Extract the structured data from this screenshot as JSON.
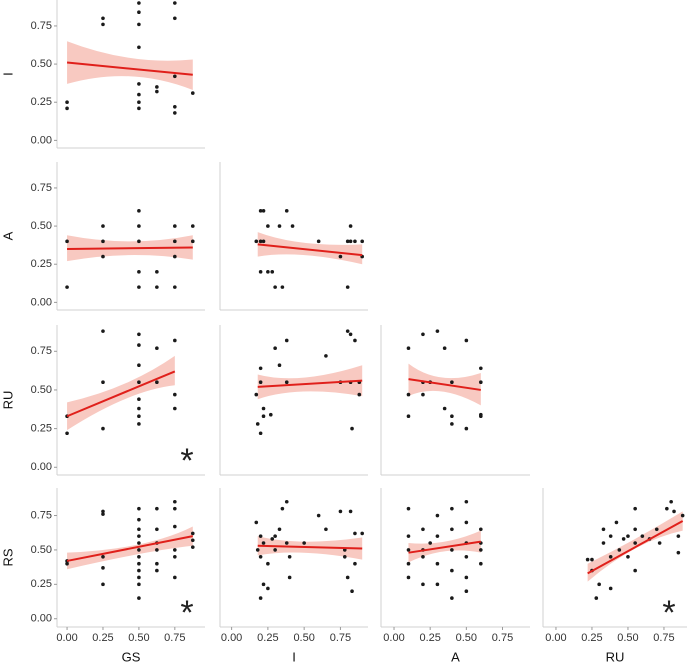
{
  "chart_data": [
    {
      "type": "scatter",
      "ylabel": "I",
      "point_color": "#1a1a1a",
      "line_color": "#e0201b",
      "band_color": "#f6bcb2",
      "xlim": [
        -0.07,
        0.96
      ],
      "ylim": [
        -0.05,
        0.92
      ],
      "yticks": [
        {
          "value": 0,
          "label": "0.00"
        },
        {
          "value": 0.25,
          "label": "0.25"
        },
        {
          "value": 0.5,
          "label": "0.50"
        },
        {
          "value": 0.75,
          "label": "0.75"
        }
      ],
      "x": [
        0,
        0,
        0.25,
        0.25,
        0.5,
        0.5,
        0.5,
        0.5,
        0.5,
        0.5,
        0.5,
        0.5,
        0.625,
        0.625,
        0.75,
        0.75,
        0.75,
        0.75,
        0.75,
        0.875
      ],
      "y": [
        0.25,
        0.21,
        0.8,
        0.76,
        0.9,
        0.84,
        0.76,
        0.61,
        0.37,
        0.3,
        0.25,
        0.21,
        0.35,
        0.32,
        0.9,
        0.8,
        0.42,
        0.22,
        0.18,
        0.31
      ],
      "fit": {
        "x": [
          0,
          0.875
        ],
        "y": [
          0.51,
          0.43
        ]
      },
      "band": {
        "x": [
          0,
          0.44,
          0.875
        ],
        "lower": [
          0.37,
          0.42,
          0.33
        ],
        "upper": [
          0.65,
          0.54,
          0.53
        ]
      }
    },
    {
      "type": "scatter",
      "ylabel": "A",
      "point_color": "#1a1a1a",
      "line_color": "#e0201b",
      "band_color": "#f6bcb2",
      "xlim": [
        -0.07,
        0.96
      ],
      "ylim": [
        -0.05,
        0.92
      ],
      "yticks": [
        {
          "value": 0,
          "label": "0.00"
        },
        {
          "value": 0.25,
          "label": "0.25"
        },
        {
          "value": 0.5,
          "label": "0.50"
        },
        {
          "value": 0.75,
          "label": "0.75"
        }
      ],
      "x": [
        0,
        0,
        0.25,
        0.25,
        0.25,
        0.5,
        0.5,
        0.5,
        0.5,
        0.5,
        0.625,
        0.625,
        0.75,
        0.75,
        0.75,
        0.75,
        0.875,
        0.875
      ],
      "y": [
        0.4,
        0.1,
        0.5,
        0.4,
        0.3,
        0.6,
        0.5,
        0.4,
        0.2,
        0.1,
        0.2,
        0.1,
        0.5,
        0.4,
        0.3,
        0.1,
        0.5,
        0.4
      ],
      "fit": {
        "x": [
          0,
          0.875
        ],
        "y": [
          0.35,
          0.36
        ]
      },
      "band": {
        "x": [
          0,
          0.44,
          0.875
        ],
        "lower": [
          0.27,
          0.31,
          0.28
        ],
        "upper": [
          0.44,
          0.4,
          0.44
        ]
      }
    },
    {
      "type": "scatter",
      "point_color": "#1a1a1a",
      "line_color": "#e0201b",
      "band_color": "#f6bcb2",
      "xlim": [
        -0.08,
        0.94
      ],
      "ylim": [
        -0.05,
        0.92
      ],
      "x": [
        0.17,
        0.2,
        0.2,
        0.2,
        0.22,
        0.22,
        0.25,
        0.25,
        0.28,
        0.3,
        0.33,
        0.35,
        0.38,
        0.42,
        0.6,
        0.75,
        0.8,
        0.8,
        0.82,
        0.82,
        0.85,
        0.9,
        0.9
      ],
      "y": [
        0.4,
        0.6,
        0.4,
        0.2,
        0.6,
        0.4,
        0.5,
        0.2,
        0.2,
        0.1,
        0.5,
        0.1,
        0.6,
        0.5,
        0.4,
        0.3,
        0.4,
        0.1,
        0.5,
        0.4,
        0.4,
        0.4,
        0.3
      ],
      "fit": {
        "x": [
          0.18,
          0.9
        ],
        "y": [
          0.38,
          0.31
        ]
      },
      "band": {
        "x": [
          0.18,
          0.5,
          0.9
        ],
        "lower": [
          0.3,
          0.31,
          0.25
        ],
        "upper": [
          0.46,
          0.39,
          0.38
        ]
      }
    },
    {
      "type": "scatter",
      "ylabel": "RU",
      "annotation": "*",
      "point_color": "#1a1a1a",
      "line_color": "#e0201b",
      "band_color": "#f6bcb2",
      "xlim": [
        -0.07,
        0.96
      ],
      "ylim": [
        -0.05,
        0.92
      ],
      "yticks": [
        {
          "value": 0,
          "label": "0.00"
        },
        {
          "value": 0.25,
          "label": "0.25"
        },
        {
          "value": 0.5,
          "label": "0.50"
        },
        {
          "value": 0.75,
          "label": "0.75"
        }
      ],
      "x": [
        0,
        0,
        0.25,
        0.25,
        0.25,
        0.5,
        0.5,
        0.5,
        0.5,
        0.5,
        0.5,
        0.5,
        0.5,
        0.625,
        0.625,
        0.75,
        0.75,
        0.75
      ],
      "y": [
        0.33,
        0.22,
        0.88,
        0.55,
        0.25,
        0.86,
        0.79,
        0.66,
        0.55,
        0.44,
        0.38,
        0.33,
        0.28,
        0.77,
        0.55,
        0.82,
        0.47,
        0.38
      ],
      "fit": {
        "x": [
          0,
          0.75
        ],
        "y": [
          0.33,
          0.62
        ]
      },
      "band": {
        "x": [
          0,
          0.4,
          0.75
        ],
        "lower": [
          0.24,
          0.44,
          0.53
        ],
        "upper": [
          0.42,
          0.54,
          0.72
        ]
      }
    },
    {
      "type": "scatter",
      "point_color": "#1a1a1a",
      "line_color": "#e0201b",
      "band_color": "#f6bcb2",
      "xlim": [
        -0.08,
        0.94
      ],
      "ylim": [
        -0.05,
        0.92
      ],
      "x": [
        0.17,
        0.18,
        0.2,
        0.2,
        0.2,
        0.22,
        0.22,
        0.27,
        0.3,
        0.33,
        0.38,
        0.38,
        0.65,
        0.75,
        0.8,
        0.82,
        0.82,
        0.83,
        0.85,
        0.88,
        0.88
      ],
      "y": [
        0.47,
        0.28,
        0.64,
        0.55,
        0.22,
        0.38,
        0.33,
        0.34,
        0.77,
        0.66,
        0.82,
        0.55,
        0.72,
        0.55,
        0.88,
        0.86,
        0.55,
        0.25,
        0.82,
        0.55,
        0.47
      ],
      "fit": {
        "x": [
          0.18,
          0.9
        ],
        "y": [
          0.52,
          0.56
        ]
      },
      "band": {
        "x": [
          0.18,
          0.5,
          0.9
        ],
        "lower": [
          0.44,
          0.49,
          0.46
        ],
        "upper": [
          0.6,
          0.58,
          0.66
        ]
      }
    },
    {
      "type": "scatter",
      "point_color": "#1a1a1a",
      "line_color": "#e0201b",
      "band_color": "#f6bcb2",
      "xlim": [
        -0.09,
        0.94
      ],
      "ylim": [
        -0.05,
        0.92
      ],
      "x": [
        0.1,
        0.1,
        0.1,
        0.2,
        0.2,
        0.2,
        0.25,
        0.3,
        0.35,
        0.35,
        0.4,
        0.4,
        0.4,
        0.5,
        0.5,
        0.6,
        0.6,
        0.6,
        0.6
      ],
      "y": [
        0.77,
        0.47,
        0.33,
        0.86,
        0.55,
        0.47,
        0.55,
        0.88,
        0.77,
        0.38,
        0.55,
        0.33,
        0.28,
        0.82,
        0.25,
        0.64,
        0.55,
        0.34,
        0.33
      ],
      "fit": {
        "x": [
          0.1,
          0.6
        ],
        "y": [
          0.57,
          0.5
        ]
      },
      "band": {
        "x": [
          0.1,
          0.33,
          0.6
        ],
        "lower": [
          0.46,
          0.49,
          0.4
        ],
        "upper": [
          0.67,
          0.58,
          0.61
        ]
      }
    },
    {
      "type": "scatter",
      "ylabel": "RS",
      "xlabel": "GS",
      "annotation": "*",
      "point_color": "#1a1a1a",
      "line_color": "#e0201b",
      "band_color": "#f6bcb2",
      "xlim": [
        -0.07,
        0.96
      ],
      "ylim": [
        -0.06,
        0.95
      ],
      "yticks": [
        {
          "value": 0,
          "label": "0.00"
        },
        {
          "value": 0.25,
          "label": "0.25"
        },
        {
          "value": 0.5,
          "label": "0.50"
        },
        {
          "value": 0.75,
          "label": "0.75"
        }
      ],
      "xticks": [
        {
          "value": 0,
          "label": "0.00"
        },
        {
          "value": 0.25,
          "label": "0.25"
        },
        {
          "value": 0.5,
          "label": "0.50"
        },
        {
          "value": 0.75,
          "label": "0.75"
        }
      ],
      "x": [
        0,
        0,
        0.25,
        0.25,
        0.25,
        0.25,
        0.25,
        0.5,
        0.5,
        0.5,
        0.5,
        0.5,
        0.5,
        0.5,
        0.5,
        0.5,
        0.5,
        0.5,
        0.5,
        0.625,
        0.625,
        0.625,
        0.625,
        0.625,
        0.625,
        0.75,
        0.75,
        0.75,
        0.75,
        0.75,
        0.75,
        0.875,
        0.875,
        0.875
      ],
      "y": [
        0.42,
        0.4,
        0.78,
        0.76,
        0.45,
        0.37,
        0.25,
        0.8,
        0.72,
        0.65,
        0.6,
        0.55,
        0.5,
        0.45,
        0.4,
        0.35,
        0.3,
        0.25,
        0.15,
        0.8,
        0.65,
        0.55,
        0.5,
        0.4,
        0.35,
        0.85,
        0.8,
        0.67,
        0.5,
        0.45,
        0.3,
        0.62,
        0.57,
        0.52
      ],
      "fit": {
        "x": [
          0,
          0.875
        ],
        "y": [
          0.42,
          0.6
        ]
      },
      "band": {
        "x": [
          0,
          0.5,
          0.875
        ],
        "lower": [
          0.36,
          0.47,
          0.53
        ],
        "upper": [
          0.48,
          0.54,
          0.67
        ]
      }
    },
    {
      "type": "scatter",
      "xlabel": "I",
      "point_color": "#1a1a1a",
      "line_color": "#e0201b",
      "band_color": "#f6bcb2",
      "xlim": [
        -0.08,
        0.94
      ],
      "ylim": [
        -0.06,
        0.95
      ],
      "xticks": [
        {
          "value": 0,
          "label": "0.00"
        },
        {
          "value": 0.25,
          "label": "0.25"
        },
        {
          "value": 0.5,
          "label": "0.50"
        },
        {
          "value": 0.75,
          "label": "0.75"
        }
      ],
      "x": [
        0.17,
        0.18,
        0.2,
        0.2,
        0.2,
        0.22,
        0.22,
        0.25,
        0.25,
        0.28,
        0.3,
        0.3,
        0.33,
        0.35,
        0.38,
        0.38,
        0.4,
        0.4,
        0.5,
        0.6,
        0.65,
        0.75,
        0.78,
        0.78,
        0.8,
        0.82,
        0.83,
        0.85,
        0.85,
        0.9
      ],
      "y": [
        0.7,
        0.5,
        0.6,
        0.45,
        0.15,
        0.25,
        0.55,
        0.4,
        0.22,
        0.58,
        0.6,
        0.5,
        0.65,
        0.8,
        0.85,
        0.55,
        0.45,
        0.3,
        0.55,
        0.75,
        0.65,
        0.78,
        0.5,
        0.45,
        0.3,
        0.78,
        0.2,
        0.62,
        0.4,
        0.62
      ],
      "fit": {
        "x": [
          0.18,
          0.9
        ],
        "y": [
          0.53,
          0.51
        ]
      },
      "band": {
        "x": [
          0.18,
          0.5,
          0.9
        ],
        "lower": [
          0.46,
          0.48,
          0.43
        ],
        "upper": [
          0.6,
          0.56,
          0.59
        ]
      }
    },
    {
      "type": "scatter",
      "xlabel": "A",
      "point_color": "#1a1a1a",
      "line_color": "#e0201b",
      "band_color": "#f6bcb2",
      "xlim": [
        -0.09,
        0.94
      ],
      "ylim": [
        -0.06,
        0.95
      ],
      "xticks": [
        {
          "value": 0,
          "label": "0.00"
        },
        {
          "value": 0.25,
          "label": "0.25"
        },
        {
          "value": 0.5,
          "label": "0.50"
        },
        {
          "value": 0.75,
          "label": "0.75"
        }
      ],
      "x": [
        0.1,
        0.1,
        0.1,
        0.1,
        0.1,
        0.2,
        0.2,
        0.2,
        0.2,
        0.25,
        0.3,
        0.3,
        0.3,
        0.3,
        0.4,
        0.4,
        0.4,
        0.4,
        0.4,
        0.5,
        0.5,
        0.5,
        0.5,
        0.5,
        0.5,
        0.6,
        0.6,
        0.6,
        0.6
      ],
      "y": [
        0.8,
        0.6,
        0.5,
        0.4,
        0.3,
        0.65,
        0.5,
        0.45,
        0.25,
        0.55,
        0.75,
        0.6,
        0.4,
        0.25,
        0.8,
        0.65,
        0.5,
        0.35,
        0.15,
        0.85,
        0.7,
        0.55,
        0.45,
        0.3,
        0.2,
        0.65,
        0.55,
        0.5,
        0.4
      ],
      "fit": {
        "x": [
          0.1,
          0.6
        ],
        "y": [
          0.48,
          0.56
        ]
      },
      "band": {
        "x": [
          0.1,
          0.35,
          0.6
        ],
        "lower": [
          0.41,
          0.49,
          0.48
        ],
        "upper": [
          0.55,
          0.56,
          0.64
        ]
      }
    },
    {
      "type": "scatter",
      "xlabel": "RU",
      "annotation": "*",
      "point_color": "#1a1a1a",
      "line_color": "#e0201b",
      "band_color": "#f6bcb2",
      "xlim": [
        -0.09,
        0.91
      ],
      "ylim": [
        -0.06,
        0.95
      ],
      "xticks": [
        {
          "value": 0,
          "label": "0.00"
        },
        {
          "value": 0.25,
          "label": "0.25"
        },
        {
          "value": 0.5,
          "label": "0.50"
        },
        {
          "value": 0.75,
          "label": "0.75"
        }
      ],
      "x": [
        0.22,
        0.25,
        0.25,
        0.28,
        0.3,
        0.33,
        0.33,
        0.38,
        0.38,
        0.38,
        0.42,
        0.44,
        0.47,
        0.5,
        0.5,
        0.55,
        0.55,
        0.55,
        0.55,
        0.6,
        0.65,
        0.7,
        0.72,
        0.77,
        0.8,
        0.82,
        0.85,
        0.85,
        0.88
      ],
      "y": [
        0.43,
        0.43,
        0.35,
        0.15,
        0.25,
        0.65,
        0.55,
        0.6,
        0.45,
        0.22,
        0.7,
        0.5,
        0.58,
        0.6,
        0.45,
        0.8,
        0.65,
        0.55,
        0.35,
        0.6,
        0.58,
        0.65,
        0.55,
        0.8,
        0.85,
        0.78,
        0.6,
        0.48,
        0.75
      ],
      "fit": {
        "x": [
          0.22,
          0.88
        ],
        "y": [
          0.33,
          0.71
        ]
      },
      "band": {
        "x": [
          0.22,
          0.55,
          0.88
        ],
        "lower": [
          0.27,
          0.51,
          0.64
        ],
        "upper": [
          0.4,
          0.58,
          0.78
        ]
      }
    }
  ]
}
